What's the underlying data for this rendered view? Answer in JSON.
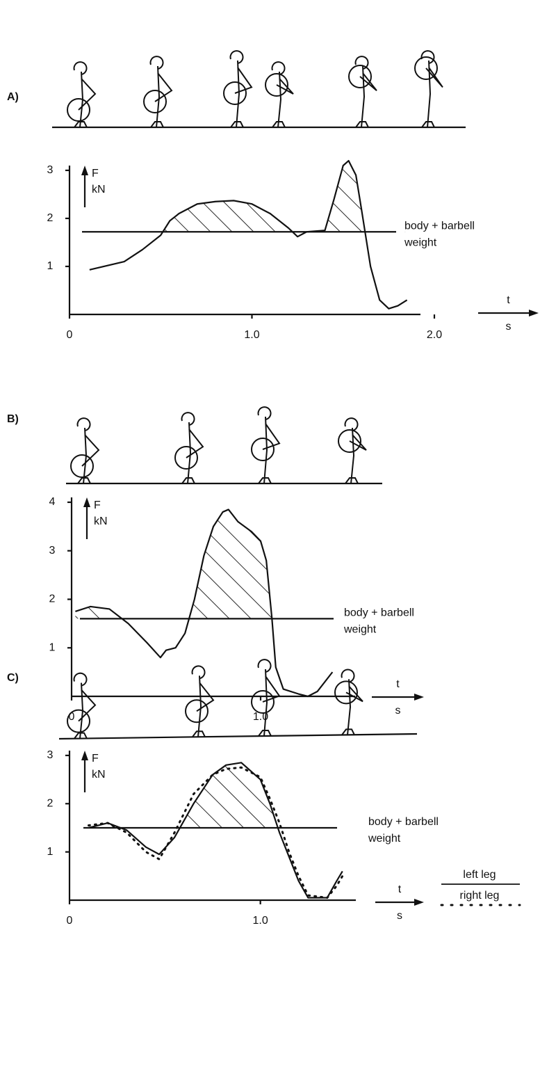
{
  "chart_data": [
    {
      "type": "line",
      "label": "A)",
      "ylabel": "F",
      "yunit": "kN",
      "xlabel": "t",
      "xunit": "s",
      "x": [
        0.11,
        0.3,
        0.4,
        0.5,
        0.55,
        0.6,
        0.7,
        0.8,
        0.9,
        1.0,
        1.1,
        1.2,
        1.25,
        1.3,
        1.4,
        1.45,
        1.5,
        1.53,
        1.57,
        1.6,
        1.65,
        1.7,
        1.75,
        1.8,
        1.85
      ],
      "values": [
        0.93,
        1.1,
        1.35,
        1.65,
        1.95,
        2.1,
        2.3,
        2.35,
        2.37,
        2.3,
        2.1,
        1.8,
        1.62,
        1.72,
        1.75,
        2.4,
        3.1,
        3.2,
        2.9,
        2.2,
        1.0,
        0.3,
        0.12,
        0.18,
        0.3
      ],
      "color": "#111111",
      "reference_line": {
        "value": 1.72,
        "label": [
          "body + barbell",
          "weight"
        ]
      },
      "xlim": [
        0,
        2.0
      ],
      "ylim": [
        0,
        3.1
      ],
      "xticks": [
        0,
        {
          "value": 1,
          "label": "1.0"
        },
        {
          "value": 2,
          "label": "2.0"
        }
      ],
      "yticks": [
        1,
        2,
        3
      ]
    },
    {
      "type": "line",
      "label": "B)",
      "ylabel": "F",
      "yunit": "kN",
      "xlabel": "t",
      "xunit": "s",
      "x": [
        0.02,
        0.1,
        0.2,
        0.3,
        0.4,
        0.47,
        0.5,
        0.55,
        0.6,
        0.65,
        0.7,
        0.75,
        0.8,
        0.83,
        0.88,
        0.95,
        1.0,
        1.03,
        1.06,
        1.08,
        1.12,
        1.2,
        1.25,
        1.3,
        1.38
      ],
      "values": [
        1.75,
        1.85,
        1.8,
        1.5,
        1.1,
        0.8,
        0.95,
        1.0,
        1.3,
        2.0,
        2.9,
        3.5,
        3.8,
        3.85,
        3.6,
        3.4,
        3.2,
        2.8,
        1.6,
        0.6,
        0.15,
        0.05,
        0.0,
        0.1,
        0.5
      ],
      "color": "#111111",
      "reference_line": {
        "value": 1.6,
        "label": [
          "body + barbell",
          "weight"
        ]
      },
      "xlim": [
        0,
        1.5
      ],
      "ylim": [
        0,
        4.1
      ],
      "xticks": [
        0,
        {
          "value": 1,
          "label": "1.0"
        }
      ],
      "yticks": [
        1,
        2,
        3,
        4
      ]
    },
    {
      "type": "line",
      "label": "C)",
      "ylabel": "F",
      "yunit": "kN",
      "xlabel": "t",
      "xunit": "s",
      "x": [
        0.1,
        0.2,
        0.3,
        0.4,
        0.47,
        0.55,
        0.65,
        0.75,
        0.82,
        0.9,
        1.0,
        1.05,
        1.1,
        1.15,
        1.2,
        1.25,
        1.35,
        1.4,
        1.43
      ],
      "series": [
        {
          "name": "left leg",
          "color": "#111111",
          "linestyle": "solid",
          "values": [
            1.5,
            1.6,
            1.45,
            1.1,
            0.95,
            1.3,
            2.0,
            2.6,
            2.8,
            2.85,
            2.5,
            2.0,
            1.4,
            0.9,
            0.4,
            0.05,
            0.05,
            0.4,
            0.6
          ]
        },
        {
          "name": "right leg",
          "color": "#111111",
          "linestyle": "dotted",
          "values": [
            1.55,
            1.6,
            1.4,
            1.0,
            0.85,
            1.4,
            2.2,
            2.6,
            2.72,
            2.75,
            2.55,
            2.1,
            1.6,
            1.0,
            0.5,
            0.1,
            0.05,
            0.3,
            0.5
          ]
        }
      ],
      "reference_line": {
        "value": 1.5,
        "label": [
          "body + barbell",
          "weight"
        ]
      },
      "xlim": [
        0,
        1.5
      ],
      "ylim": [
        0,
        3.1
      ],
      "xticks": [
        0,
        {
          "value": 1,
          "label": "1.0"
        }
      ],
      "yticks": [
        1,
        2,
        3
      ]
    }
  ]
}
